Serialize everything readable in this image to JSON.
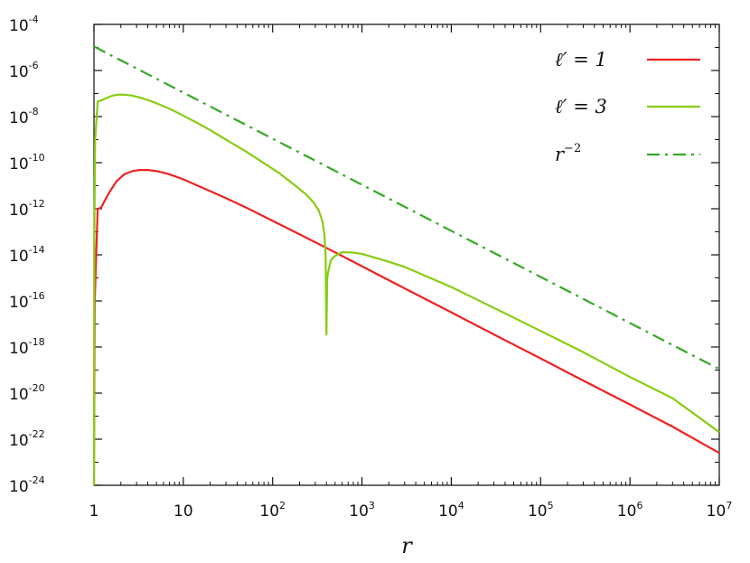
{
  "chart_data": {
    "type": "line",
    "title": "",
    "xlabel": "r",
    "ylabel": "",
    "xscale": "log",
    "yscale": "log",
    "xlim": [
      1,
      10000000
    ],
    "ylim": [
      1e-24,
      0.0001
    ],
    "grid": false,
    "legend_position": "top-right",
    "x_ticks": [
      {
        "value": 1,
        "base": "1",
        "exp": ""
      },
      {
        "value": 10,
        "base": "10",
        "exp": ""
      },
      {
        "value": 100,
        "base": "10",
        "exp": "2"
      },
      {
        "value": 1000,
        "base": "10",
        "exp": "3"
      },
      {
        "value": 10000,
        "base": "10",
        "exp": "4"
      },
      {
        "value": 100000,
        "base": "10",
        "exp": "5"
      },
      {
        "value": 1000000,
        "base": "10",
        "exp": "6"
      },
      {
        "value": 10000000,
        "base": "10",
        "exp": "7"
      }
    ],
    "y_ticks": [
      {
        "value": 0.0001,
        "base": "10",
        "exp": "-4"
      },
      {
        "value": 1e-06,
        "base": "10",
        "exp": "-6"
      },
      {
        "value": 1e-08,
        "base": "10",
        "exp": "-8"
      },
      {
        "value": 1e-10,
        "base": "10",
        "exp": "-10"
      },
      {
        "value": 1e-12,
        "base": "10",
        "exp": "-12"
      },
      {
        "value": 1e-14,
        "base": "10",
        "exp": "-14"
      },
      {
        "value": 1e-16,
        "base": "10",
        "exp": "-16"
      },
      {
        "value": 1e-18,
        "base": "10",
        "exp": "-18"
      },
      {
        "value": 1e-20,
        "base": "10",
        "exp": "-20"
      },
      {
        "value": 1e-22,
        "base": "10",
        "exp": "-22"
      },
      {
        "value": 1e-24,
        "base": "10",
        "exp": "-24"
      }
    ],
    "series": [
      {
        "name": "ℓ′ = 1",
        "legend_main": "ℓ′ = 1",
        "legend_sup": "",
        "color": "#ee2222",
        "style": "solid",
        "x": [
          1.001,
          1.005,
          1.02,
          1.1,
          1.2,
          1.3,
          1.5,
          1.8,
          2.2,
          2.7,
          3.2,
          4,
          5,
          6.5,
          8,
          10,
          15,
          20,
          30,
          50,
          100,
          200,
          400,
          1000,
          3000,
          10000,
          30000,
          100000,
          300000,
          1000000,
          3000000,
          10000000
        ],
        "y": [
          1e-24,
          1e-21,
          1e-16,
          1e-12,
          1.1e-12,
          2e-12,
          5.5e-12,
          1.6e-11,
          3.2e-11,
          4.3e-11,
          4.8e-11,
          4.8e-11,
          4.3e-11,
          3.4e-11,
          2.6e-11,
          1.9e-11,
          9.5e-12,
          5.8e-12,
          2.9e-12,
          1.15e-12,
          3e-13,
          7.8e-14,
          2e-14,
          3.2e-15,
          3.5e-16,
          3.2e-17,
          3.5e-18,
          3.2e-19,
          3.5e-20,
          3.2e-21,
          3.5e-22,
          2.5e-23
        ]
      },
      {
        "name": "ℓ′ = 3",
        "legend_main": "ℓ′ = 3",
        "legend_sup": "",
        "color": "#88cc11",
        "style": "solid",
        "x": [
          1.001,
          1.003,
          1.01,
          1.03,
          1.1,
          1.2,
          1.4,
          1.6,
          1.8,
          2,
          2.3,
          2.7,
          3.3,
          4,
          5,
          7,
          10,
          15,
          20,
          30,
          50,
          80,
          120,
          180,
          240,
          290,
          330,
          360,
          380,
          392,
          400,
          408,
          420,
          450,
          500,
          600,
          800,
          1000,
          2000,
          3000,
          10000,
          30000,
          100000,
          300000,
          1000000,
          3000000,
          10000000
        ],
        "y": [
          1e-24,
          1e-20,
          1e-13,
          1e-09,
          4.5e-08,
          5e-08,
          6.5e-08,
          8e-08,
          8.8e-08,
          9e-08,
          8.8e-08,
          8e-08,
          6.6e-08,
          5.2e-08,
          3.8e-08,
          2.2e-08,
          1.1e-08,
          4.8e-09,
          2.6e-09,
          1e-09,
          3.1e-10,
          9.5e-11,
          3.4e-11,
          1e-11,
          4e-12,
          1.8e-12,
          8e-13,
          3e-13,
          8e-14,
          1e-14,
          3.5e-18,
          1e-15,
          2e-15,
          6e-15,
          9e-15,
          1.3e-14,
          1.25e-14,
          1.1e-14,
          5e-15,
          3e-15,
          4e-16,
          5e-17,
          5e-18,
          6e-19,
          5e-20,
          6e-21,
          2e-22
        ]
      },
      {
        "name": "r⁻²",
        "legend_main": "r",
        "legend_sup": "−2",
        "color": "#33aa22",
        "style": "dash-dot",
        "x": [
          1,
          10000000
        ],
        "y": [
          1.1e-05,
          1.1e-19
        ]
      }
    ]
  }
}
